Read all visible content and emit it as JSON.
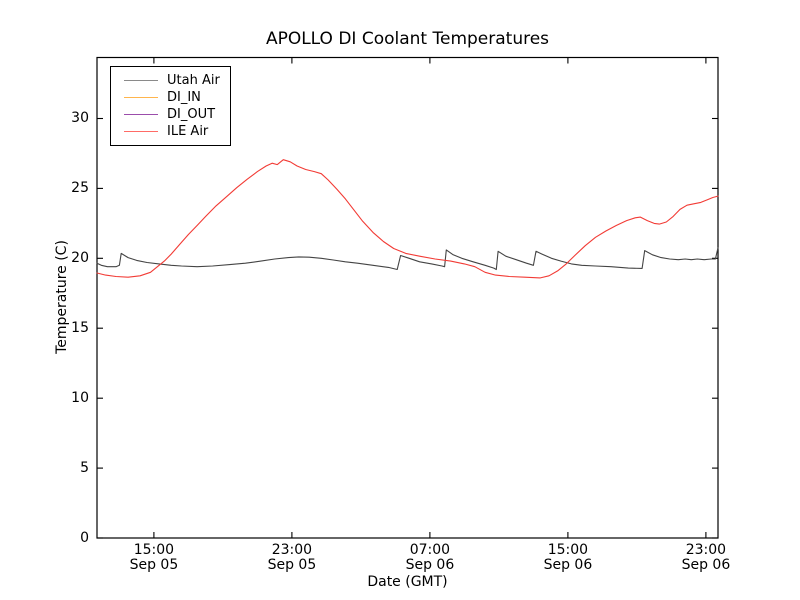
{
  "chart_data": {
    "type": "line",
    "title": "APOLLO DI Coolant Temperatures",
    "xlabel": "Date (GMT)",
    "ylabel": "Temperature (C)",
    "grid": false,
    "legend_position": "upper left",
    "x_unit": "hours since Sep 05 00:00 GMT",
    "xlim": [
      11.7,
      47.7
    ],
    "ylim": [
      0,
      34.36
    ],
    "yticks": [
      0,
      5,
      10,
      15,
      20,
      25,
      30
    ],
    "xticks": [
      {
        "t": 15,
        "label": "15:00",
        "sublabel": "Sep 05"
      },
      {
        "t": 23,
        "label": "23:00",
        "sublabel": "Sep 05"
      },
      {
        "t": 31,
        "label": "07:00",
        "sublabel": "Sep 06"
      },
      {
        "t": 39,
        "label": "15:00",
        "sublabel": "Sep 06"
      },
      {
        "t": 47,
        "label": "23:00",
        "sublabel": "Sep 06"
      }
    ],
    "series": [
      {
        "name": "Utah Air",
        "color": "#444444",
        "legend_color": "#8a8a8a",
        "points": [
          [
            11.7,
            19.65
          ],
          [
            11.95,
            19.5
          ],
          [
            12.3,
            19.4
          ],
          [
            12.8,
            19.4
          ],
          [
            13.0,
            19.5
          ],
          [
            13.1,
            20.35
          ],
          [
            13.5,
            20.05
          ],
          [
            14.0,
            19.85
          ],
          [
            14.6,
            19.7
          ],
          [
            15.3,
            19.6
          ],
          [
            16.0,
            19.5
          ],
          [
            16.6,
            19.45
          ],
          [
            17.5,
            19.4
          ],
          [
            18.4,
            19.45
          ],
          [
            19.4,
            19.55
          ],
          [
            20.3,
            19.65
          ],
          [
            21.2,
            19.8
          ],
          [
            22.0,
            19.95
          ],
          [
            22.8,
            20.05
          ],
          [
            23.4,
            20.1
          ],
          [
            24.0,
            20.08
          ],
          [
            24.7,
            20.0
          ],
          [
            25.4,
            19.88
          ],
          [
            26.1,
            19.75
          ],
          [
            26.8,
            19.65
          ],
          [
            27.7,
            19.5
          ],
          [
            28.6,
            19.35
          ],
          [
            29.1,
            19.2
          ],
          [
            29.3,
            20.2
          ],
          [
            29.8,
            20.0
          ],
          [
            30.4,
            19.75
          ],
          [
            31.1,
            19.6
          ],
          [
            31.7,
            19.45
          ],
          [
            31.85,
            19.4
          ],
          [
            31.95,
            20.6
          ],
          [
            32.35,
            20.25
          ],
          [
            32.85,
            20.0
          ],
          [
            33.5,
            19.75
          ],
          [
            34.2,
            19.5
          ],
          [
            34.7,
            19.3
          ],
          [
            34.85,
            19.2
          ],
          [
            34.95,
            20.5
          ],
          [
            35.4,
            20.15
          ],
          [
            36.0,
            19.9
          ],
          [
            36.6,
            19.65
          ],
          [
            37.0,
            19.5
          ],
          [
            37.15,
            20.5
          ],
          [
            37.5,
            20.3
          ],
          [
            38.05,
            20.0
          ],
          [
            38.6,
            19.8
          ],
          [
            39.2,
            19.6
          ],
          [
            39.8,
            19.5
          ],
          [
            40.6,
            19.45
          ],
          [
            41.5,
            19.4
          ],
          [
            42.5,
            19.3
          ],
          [
            43.3,
            19.28
          ],
          [
            43.45,
            20.55
          ],
          [
            43.9,
            20.25
          ],
          [
            44.4,
            20.05
          ],
          [
            44.9,
            19.95
          ],
          [
            45.4,
            19.9
          ],
          [
            45.8,
            19.95
          ],
          [
            46.15,
            19.9
          ],
          [
            46.5,
            19.95
          ],
          [
            46.9,
            19.9
          ],
          [
            47.3,
            19.95
          ],
          [
            47.55,
            19.95
          ],
          [
            47.7,
            20.75
          ]
        ]
      },
      {
        "name": "DI_IN",
        "color": "#ffa626",
        "legend_color": "#ffb54d",
        "points": []
      },
      {
        "name": "DI_OUT",
        "color": "#8d3a9e",
        "legend_color": "#9b4dab",
        "points": []
      },
      {
        "name": "ILE Air",
        "color": "#f23b35",
        "legend_color": "#ff6b66",
        "points": [
          [
            11.7,
            18.95
          ],
          [
            12.2,
            18.8
          ],
          [
            12.8,
            18.7
          ],
          [
            13.5,
            18.65
          ],
          [
            14.2,
            18.75
          ],
          [
            14.8,
            19.0
          ],
          [
            15.2,
            19.4
          ],
          [
            15.6,
            19.8
          ],
          [
            16.0,
            20.3
          ],
          [
            16.5,
            21.0
          ],
          [
            17.0,
            21.7
          ],
          [
            17.5,
            22.35
          ],
          [
            18.0,
            23.0
          ],
          [
            18.6,
            23.75
          ],
          [
            19.2,
            24.4
          ],
          [
            19.8,
            25.05
          ],
          [
            20.4,
            25.65
          ],
          [
            21.0,
            26.2
          ],
          [
            21.5,
            26.6
          ],
          [
            21.85,
            26.8
          ],
          [
            22.15,
            26.7
          ],
          [
            22.5,
            27.05
          ],
          [
            22.9,
            26.9
          ],
          [
            23.3,
            26.6
          ],
          [
            23.8,
            26.35
          ],
          [
            24.3,
            26.2
          ],
          [
            24.7,
            26.05
          ],
          [
            25.1,
            25.6
          ],
          [
            25.6,
            24.95
          ],
          [
            26.1,
            24.25
          ],
          [
            26.6,
            23.45
          ],
          [
            27.1,
            22.65
          ],
          [
            27.7,
            21.85
          ],
          [
            28.3,
            21.2
          ],
          [
            28.9,
            20.7
          ],
          [
            29.6,
            20.35
          ],
          [
            30.4,
            20.15
          ],
          [
            31.3,
            19.95
          ],
          [
            32.2,
            19.8
          ],
          [
            33.0,
            19.6
          ],
          [
            33.6,
            19.4
          ],
          [
            34.2,
            19.0
          ],
          [
            34.8,
            18.8
          ],
          [
            35.6,
            18.7
          ],
          [
            36.5,
            18.65
          ],
          [
            37.4,
            18.6
          ],
          [
            37.9,
            18.75
          ],
          [
            38.4,
            19.1
          ],
          [
            38.9,
            19.6
          ],
          [
            39.4,
            20.2
          ],
          [
            40.0,
            20.9
          ],
          [
            40.6,
            21.5
          ],
          [
            41.2,
            21.95
          ],
          [
            41.8,
            22.35
          ],
          [
            42.4,
            22.7
          ],
          [
            42.9,
            22.9
          ],
          [
            43.2,
            22.95
          ],
          [
            43.6,
            22.7
          ],
          [
            44.0,
            22.5
          ],
          [
            44.3,
            22.45
          ],
          [
            44.7,
            22.6
          ],
          [
            45.1,
            23.0
          ],
          [
            45.5,
            23.5
          ],
          [
            45.9,
            23.8
          ],
          [
            46.3,
            23.9
          ],
          [
            46.7,
            24.0
          ],
          [
            47.1,
            24.2
          ],
          [
            47.4,
            24.35
          ],
          [
            47.7,
            24.45
          ]
        ]
      }
    ]
  }
}
